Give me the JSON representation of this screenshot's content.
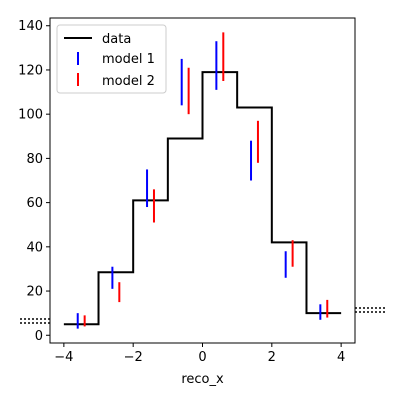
{
  "chart_data": {
    "type": "line",
    "xlabel": "reco_x",
    "ylabel": "",
    "xlim": [
      -4.4,
      4.4
    ],
    "ylim": [
      -3.5,
      143.5
    ],
    "xticks": [
      -4,
      -2,
      0,
      2,
      4
    ],
    "xtick_labels": [
      "-4",
      "-2",
      "0",
      "2",
      "4"
    ],
    "yticks": [
      0,
      20,
      40,
      60,
      80,
      100,
      120,
      140
    ],
    "ytick_labels": [
      "0",
      "20",
      "40",
      "60",
      "80",
      "100",
      "120",
      "140"
    ],
    "legend_position": "top-left",
    "data_series": {
      "name": "data",
      "color": "#000000",
      "bin_edges": [
        -4,
        -3,
        -2,
        -1,
        0,
        1,
        2,
        3,
        4
      ],
      "values": [
        5,
        28.5,
        61,
        89,
        119,
        103,
        42,
        10
      ]
    },
    "model_series": [
      {
        "name": "model 1",
        "color": "#0000ff",
        "points": [
          {
            "x": -3.6,
            "low": 3,
            "high": 10
          },
          {
            "x": -2.6,
            "low": 21,
            "high": 31
          },
          {
            "x": -1.6,
            "low": 58,
            "high": 75
          },
          {
            "x": -0.6,
            "low": 104,
            "high": 125
          },
          {
            "x": 0.4,
            "low": 111,
            "high": 133
          },
          {
            "x": 1.4,
            "low": 70,
            "high": 88
          },
          {
            "x": 2.4,
            "low": 26,
            "high": 38
          },
          {
            "x": 3.4,
            "low": 7,
            "high": 14
          }
        ]
      },
      {
        "name": "model 2",
        "color": "#ff0000",
        "points": [
          {
            "x": -3.4,
            "low": 4,
            "high": 9
          },
          {
            "x": -2.4,
            "low": 15,
            "high": 24
          },
          {
            "x": -1.4,
            "low": 51,
            "high": 66
          },
          {
            "x": -0.4,
            "low": 100,
            "high": 121
          },
          {
            "x": 0.6,
            "low": 115,
            "high": 137
          },
          {
            "x": 1.6,
            "low": 78,
            "high": 97
          },
          {
            "x": 2.6,
            "low": 31,
            "high": 43
          },
          {
            "x": 3.6,
            "low": 8,
            "high": 16
          }
        ]
      }
    ]
  }
}
